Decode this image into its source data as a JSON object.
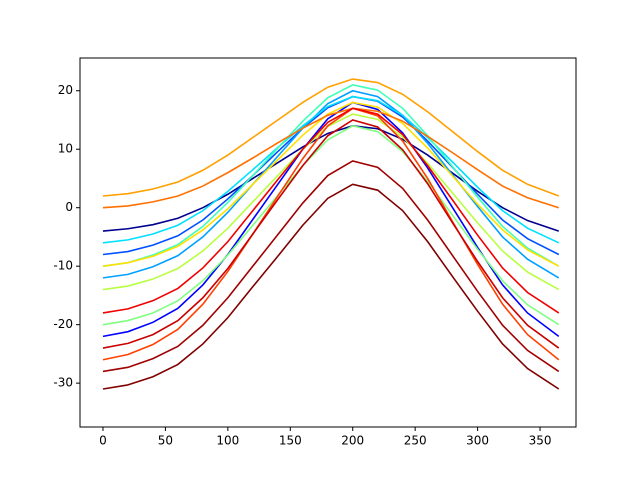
{
  "chart_data": {
    "type": "line",
    "x": [
      0,
      20,
      40,
      60,
      80,
      100,
      120,
      140,
      160,
      180,
      200,
      220,
      240,
      260,
      280,
      300,
      320,
      340,
      365
    ],
    "xlim": [
      -18.4,
      378.8
    ],
    "xticks": [
      0,
      50,
      100,
      150,
      200,
      250,
      300,
      350
    ],
    "ylim": [
      -37.5,
      25.6
    ],
    "yticks": [
      -30,
      -20,
      -10,
      0,
      10,
      20
    ],
    "grid": false,
    "series": [
      {
        "color": "#00008f",
        "values": [
          -4,
          -3.6,
          -2.9,
          -1.8,
          0,
          2.3,
          5,
          7.7,
          10.4,
          12.7,
          14,
          13.5,
          11.7,
          9,
          5.9,
          2.8,
          0,
          -2.2,
          -4
        ]
      },
      {
        "color": "#0000ff",
        "values": [
          -22,
          -21.2,
          -19.6,
          -17.2,
          -13.2,
          -8,
          -2,
          4,
          10,
          15.2,
          18,
          16.8,
          12.8,
          6.8,
          0,
          -6.8,
          -13.2,
          -18,
          -22
        ]
      },
      {
        "color": "#0050ff",
        "values": [
          -8,
          -7.5,
          -6.4,
          -4.8,
          -2.1,
          1.5,
          5.5,
          9.6,
          13.6,
          17.1,
          19,
          18.2,
          15.5,
          11.4,
          6.9,
          2.3,
          -2.1,
          -5.3,
          -8
        ]
      },
      {
        "color": "#00a0ff",
        "values": [
          -12,
          -11.4,
          -10.1,
          -8.2,
          -5,
          -0.8,
          4,
          8.8,
          13.6,
          17.8,
          20,
          19,
          15.8,
          11,
          5.6,
          0.2,
          -5,
          -8.8,
          -12
        ]
      },
      {
        "color": "#00e0ff",
        "values": [
          -6,
          -5.5,
          -4.5,
          -3,
          -0.5,
          2.8,
          6.5,
          10.3,
          14,
          17.3,
          19,
          18.3,
          15.8,
          12,
          7.8,
          3.5,
          -0.5,
          -3.5,
          -6
        ]
      },
      {
        "color": "#40ffb8",
        "values": [
          -10,
          -9.4,
          -8.1,
          -6.3,
          -3.2,
          0.9,
          5.5,
          10.2,
          14.8,
          18.8,
          21,
          20.1,
          17,
          12.3,
          7,
          1.8,
          -3.2,
          -6.9,
          -10
        ]
      },
      {
        "color": "#80ff80",
        "values": [
          -20,
          -19.3,
          -18,
          -15.9,
          -12.5,
          -8.1,
          -3,
          2.1,
          7.2,
          11.6,
          14,
          13,
          9.6,
          4.5,
          -1.3,
          -7.1,
          -12.5,
          -16.6,
          -20
        ]
      },
      {
        "color": "#b8ff40",
        "values": [
          -14,
          -13.4,
          -12.2,
          -10.4,
          -7.4,
          -3.5,
          1,
          5.5,
          10,
          13.9,
          16,
          15.1,
          12.1,
          7.6,
          2.5,
          -2.6,
          -7.4,
          -11,
          -14
        ]
      },
      {
        "color": "#ffe000",
        "values": [
          -10,
          -9.4,
          -8.3,
          -6.6,
          -3.8,
          -0.2,
          4,
          8.2,
          12.4,
          16,
          18,
          17.2,
          14.4,
          10.2,
          5.4,
          0.6,
          -3.8,
          -7.2,
          -10
        ]
      },
      {
        "color": "#ffa000",
        "values": [
          2,
          2.4,
          3.2,
          4.4,
          6.4,
          9,
          12,
          15,
          18,
          20.6,
          22,
          21.4,
          19.4,
          16.4,
          13,
          9.6,
          6.4,
          4,
          2
        ]
      },
      {
        "color": "#ff7000",
        "values": [
          0,
          0.3,
          1,
          2,
          3.7,
          6,
          8.5,
          11.1,
          13.6,
          15.8,
          17,
          16.5,
          14.8,
          12.2,
          9.4,
          6.5,
          3.7,
          1.7,
          0
        ]
      },
      {
        "color": "#ff4000",
        "values": [
          -26,
          -25.1,
          -23.4,
          -20.8,
          -16.5,
          -10.9,
          -4.5,
          2,
          8.4,
          14,
          17,
          15.7,
          11.4,
          5,
          -2.4,
          -9.7,
          -16.5,
          -21.7,
          -26
        ]
      },
      {
        "color": "#f00000",
        "values": [
          -18,
          -17.3,
          -15.9,
          -13.8,
          -10.3,
          -5.8,
          -0.5,
          4.8,
          10,
          14.6,
          17,
          16,
          12.5,
          7.2,
          1.3,
          -4.7,
          -10.3,
          -14.5,
          -18
        ]
      },
      {
        "color": "#c80000",
        "values": [
          -24,
          -23.2,
          -21.7,
          -19.3,
          -15.4,
          -10.4,
          -4.5,
          1.4,
          7.2,
          12.3,
          15,
          13.8,
          9.9,
          4.1,
          -2.6,
          -9.2,
          -15.4,
          -20.1,
          -24
        ]
      },
      {
        "color": "#a00000",
        "values": [
          -28,
          -27.3,
          -25.8,
          -23.7,
          -20.1,
          -15.4,
          -10,
          -4.6,
          0.8,
          5.5,
          8,
          6.9,
          3.3,
          -2.1,
          -8.2,
          -14.3,
          -20.1,
          -24.4,
          -28
        ]
      },
      {
        "color": "#800000",
        "values": [
          -31,
          -30.3,
          -28.9,
          -26.8,
          -23.3,
          -18.8,
          -13.5,
          -8.3,
          -3,
          1.6,
          4,
          3,
          -0.5,
          -5.8,
          -11.8,
          -17.7,
          -23.3,
          -27.5,
          -31
        ]
      }
    ]
  }
}
